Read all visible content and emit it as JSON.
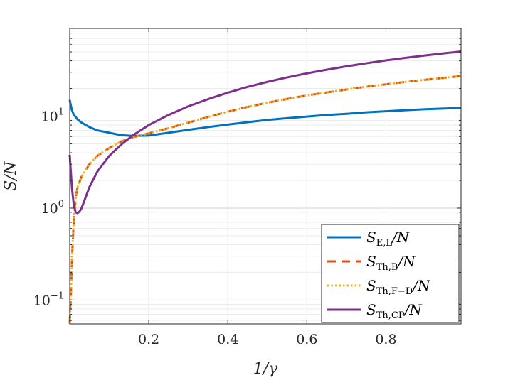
{
  "chart_data": {
    "type": "line",
    "xlabel": "1/γ",
    "ylabel": "S/N",
    "xscale": "linear",
    "yscale": "log",
    "xlim": [
      0.0,
      0.99
    ],
    "ylim": [
      0.055,
      90
    ],
    "grid": true,
    "legend_position": "bottom-right",
    "x_ticks": [
      {
        "value": 0.2,
        "label": "0.2"
      },
      {
        "value": 0.4,
        "label": "0.4"
      },
      {
        "value": 0.6,
        "label": "0.6"
      },
      {
        "value": 0.8,
        "label": "0.8"
      }
    ],
    "y_ticks": [
      {
        "value": 0.1,
        "base": "10",
        "exp": "−1"
      },
      {
        "value": 1,
        "base": "10",
        "exp": "0"
      },
      {
        "value": 10,
        "base": "10",
        "exp": "1"
      }
    ],
    "series": [
      {
        "name": "S_E,L/N",
        "label_main": "S",
        "label_sub": "E,L",
        "label_tail": "/N",
        "color": "#0072bd",
        "dash": "solid",
        "points": [
          [
            0.0,
            15.0
          ],
          [
            0.005,
            11.8
          ],
          [
            0.01,
            10.4
          ],
          [
            0.02,
            9.2
          ],
          [
            0.03,
            8.5
          ],
          [
            0.05,
            7.6
          ],
          [
            0.07,
            7.0
          ],
          [
            0.1,
            6.6
          ],
          [
            0.13,
            6.2
          ],
          [
            0.16,
            6.1
          ],
          [
            0.2,
            6.15
          ],
          [
            0.25,
            6.6
          ],
          [
            0.3,
            7.1
          ],
          [
            0.35,
            7.6
          ],
          [
            0.4,
            8.1
          ],
          [
            0.45,
            8.6
          ],
          [
            0.5,
            9.1
          ],
          [
            0.55,
            9.5
          ],
          [
            0.6,
            9.9
          ],
          [
            0.65,
            10.3
          ],
          [
            0.7,
            10.6
          ],
          [
            0.75,
            11.0
          ],
          [
            0.8,
            11.3
          ],
          [
            0.85,
            11.6
          ],
          [
            0.9,
            11.9
          ],
          [
            0.95,
            12.1
          ],
          [
            0.99,
            12.3
          ]
        ]
      },
      {
        "name": "S_Th,B/N",
        "label_main": "S",
        "label_sub": "Th,B",
        "label_tail": "/N",
        "color": "#d95319",
        "dash": "dashed",
        "points": [
          [
            0.0,
            0.055
          ],
          [
            0.003,
            0.12
          ],
          [
            0.006,
            0.3
          ],
          [
            0.01,
            0.7
          ],
          [
            0.015,
            1.3
          ],
          [
            0.02,
            1.7
          ],
          [
            0.03,
            2.2
          ],
          [
            0.05,
            3.0
          ],
          [
            0.07,
            3.7
          ],
          [
            0.1,
            4.5
          ],
          [
            0.13,
            5.3
          ],
          [
            0.16,
            5.9
          ],
          [
            0.2,
            6.5
          ],
          [
            0.25,
            7.4
          ],
          [
            0.3,
            8.5
          ],
          [
            0.35,
            9.8
          ],
          [
            0.4,
            11.2
          ],
          [
            0.45,
            12.6
          ],
          [
            0.5,
            14.0
          ],
          [
            0.55,
            15.4
          ],
          [
            0.6,
            16.8
          ],
          [
            0.65,
            18.1
          ],
          [
            0.7,
            19.5
          ],
          [
            0.75,
            20.9
          ],
          [
            0.8,
            22.2
          ],
          [
            0.85,
            23.6
          ],
          [
            0.9,
            24.9
          ],
          [
            0.95,
            26.2
          ],
          [
            0.99,
            27.3
          ]
        ]
      },
      {
        "name": "S_Th,F−D/N",
        "label_main": "S",
        "label_sub": "Th,F−D",
        "label_tail": "/N",
        "color": "#edb120",
        "dash": "dotted",
        "points": [
          [
            0.0,
            0.055
          ],
          [
            0.003,
            0.12
          ],
          [
            0.006,
            0.3
          ],
          [
            0.01,
            0.7
          ],
          [
            0.015,
            1.3
          ],
          [
            0.02,
            1.7
          ],
          [
            0.03,
            2.2
          ],
          [
            0.05,
            3.0
          ],
          [
            0.07,
            3.7
          ],
          [
            0.1,
            4.5
          ],
          [
            0.13,
            5.3
          ],
          [
            0.16,
            5.9
          ],
          [
            0.2,
            6.5
          ],
          [
            0.25,
            7.4
          ],
          [
            0.3,
            8.5
          ],
          [
            0.35,
            9.8
          ],
          [
            0.4,
            11.2
          ],
          [
            0.45,
            12.6
          ],
          [
            0.5,
            14.0
          ],
          [
            0.55,
            15.4
          ],
          [
            0.6,
            16.8
          ],
          [
            0.65,
            18.1
          ],
          [
            0.7,
            19.5
          ],
          [
            0.75,
            20.9
          ],
          [
            0.8,
            22.2
          ],
          [
            0.85,
            23.6
          ],
          [
            0.9,
            24.9
          ],
          [
            0.95,
            26.2
          ],
          [
            0.99,
            27.3
          ]
        ]
      },
      {
        "name": "S_Th,CP/N",
        "label_main": "S",
        "label_sub": "Th,CP",
        "label_tail": "/N",
        "color": "#7e2f8e",
        "dash": "solid",
        "points": [
          [
            0.0,
            3.8
          ],
          [
            0.003,
            2.4
          ],
          [
            0.006,
            1.6
          ],
          [
            0.01,
            1.1
          ],
          [
            0.015,
            0.9
          ],
          [
            0.02,
            0.88
          ],
          [
            0.025,
            0.92
          ],
          [
            0.03,
            1.0
          ],
          [
            0.04,
            1.3
          ],
          [
            0.05,
            1.7
          ],
          [
            0.07,
            2.5
          ],
          [
            0.1,
            3.7
          ],
          [
            0.13,
            4.9
          ],
          [
            0.16,
            6.2
          ],
          [
            0.2,
            8.0
          ],
          [
            0.25,
            10.3
          ],
          [
            0.3,
            12.8
          ],
          [
            0.35,
            15.3
          ],
          [
            0.4,
            18.0
          ],
          [
            0.45,
            20.8
          ],
          [
            0.5,
            23.6
          ],
          [
            0.55,
            26.4
          ],
          [
            0.6,
            29.2
          ],
          [
            0.65,
            32.0
          ],
          [
            0.7,
            34.8
          ],
          [
            0.75,
            37.6
          ],
          [
            0.8,
            40.4
          ],
          [
            0.85,
            43.1
          ],
          [
            0.9,
            45.8
          ],
          [
            0.95,
            48.4
          ],
          [
            0.99,
            50.5
          ]
        ]
      }
    ]
  }
}
